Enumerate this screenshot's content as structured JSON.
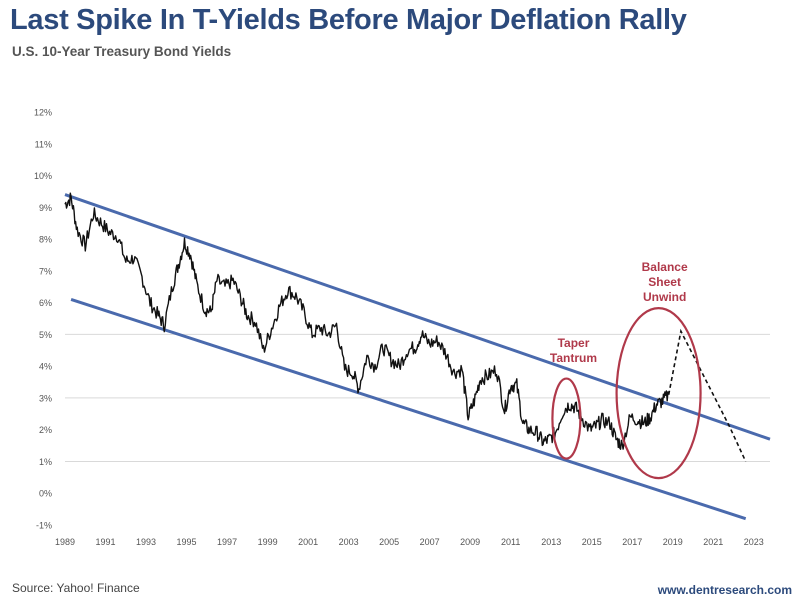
{
  "header": {
    "title": "Last Spike In T-Yields Before Major Deflation Rally",
    "subtitle": "U.S. 10-Year Treasury Bond Yields"
  },
  "footer": {
    "source": "Source: Yahoo! Finance",
    "website": "www.dentresearch.com"
  },
  "colors": {
    "title": "#2c4a7c",
    "channel": "#4a6aad",
    "series": "#111111",
    "annotation": "#b0394a",
    "grid": "#d9d9d9"
  },
  "chart_data": {
    "type": "line",
    "title": "Last Spike In T-Yields Before Major Deflation Rally",
    "subtitle": "U.S. 10-Year Treasury Bond Yields",
    "xlabel": "",
    "ylabel": "",
    "xlim": [
      1989,
      2023.8
    ],
    "ylim": [
      -1,
      12
    ],
    "y_ticks": [
      -1,
      0,
      1,
      2,
      3,
      4,
      5,
      6,
      7,
      8,
      9,
      10,
      11,
      12
    ],
    "y_tick_labels": [
      "-1%",
      "0%",
      "1%",
      "2%",
      "3%",
      "4%",
      "5%",
      "6%",
      "7%",
      "8%",
      "9%",
      "10%",
      "11%",
      "12%"
    ],
    "x_tick_labels": [
      "1989",
      "1991",
      "1993",
      "1995",
      "1997",
      "1999",
      "2001",
      "2003",
      "2005",
      "2007",
      "2009",
      "2011",
      "2013",
      "2015",
      "2017",
      "2019",
      "2021",
      "2023"
    ],
    "grid": "horizontal",
    "series": [
      {
        "name": "10-Year Treasury Yield",
        "style": "solid",
        "x": [
          1989.0,
          1989.3,
          1989.6,
          1990.0,
          1990.4,
          1990.8,
          1991.2,
          1991.6,
          1992.0,
          1992.4,
          1992.8,
          1993.2,
          1993.6,
          1993.9,
          1994.3,
          1994.6,
          1994.9,
          1995.2,
          1995.5,
          1995.9,
          1996.2,
          1996.5,
          1996.9,
          1997.3,
          1997.7,
          1998.0,
          1998.4,
          1998.8,
          1999.2,
          1999.6,
          2000.0,
          2000.4,
          2000.8,
          2001.2,
          2001.6,
          2002.0,
          2002.4,
          2002.8,
          2003.2,
          2003.5,
          2003.9,
          2004.3,
          2004.7,
          2005.1,
          2005.5,
          2005.9,
          2006.3,
          2006.6,
          2007.0,
          2007.4,
          2007.8,
          2008.2,
          2008.6,
          2008.9,
          2009.2,
          2009.5,
          2009.9,
          2010.3,
          2010.7,
          2011.0,
          2011.3,
          2011.6,
          2011.9,
          2012.3,
          2012.6,
          2012.9,
          2013.2,
          2013.6,
          2013.9,
          2014.2,
          2014.5,
          2014.9,
          2015.2,
          2015.5,
          2015.9,
          2016.2,
          2016.5,
          2016.9,
          2017.3,
          2017.6,
          2017.9,
          2018.2,
          2018.5,
          2018.8
        ],
        "values": [
          9.1,
          9.3,
          8.3,
          7.8,
          8.8,
          8.5,
          8.2,
          8.1,
          7.3,
          7.4,
          6.8,
          6.0,
          5.6,
          5.3,
          6.5,
          7.2,
          7.9,
          7.5,
          6.6,
          5.8,
          5.7,
          6.7,
          6.5,
          6.7,
          6.1,
          5.6,
          5.4,
          4.5,
          5.2,
          5.9,
          6.4,
          6.2,
          5.7,
          5.0,
          5.2,
          5.0,
          5.3,
          3.9,
          3.8,
          3.3,
          4.3,
          4.0,
          4.6,
          4.2,
          4.0,
          4.5,
          4.6,
          5.0,
          4.7,
          4.8,
          4.4,
          3.8,
          3.9,
          2.4,
          2.9,
          3.6,
          3.7,
          3.9,
          2.6,
          3.4,
          3.4,
          2.2,
          2.0,
          1.9,
          1.6,
          1.7,
          1.9,
          2.6,
          2.8,
          2.7,
          2.4,
          2.0,
          2.1,
          2.3,
          2.2,
          1.7,
          1.5,
          2.4,
          2.3,
          2.2,
          2.4,
          2.8,
          2.9,
          3.1
        ]
      },
      {
        "name": "Projection",
        "style": "dashed",
        "x": [
          2018.8,
          2019.4,
          2020.6,
          2021.8,
          2022.6
        ],
        "values": [
          3.1,
          5.1,
          3.6,
          2.1,
          1.0
        ]
      }
    ],
    "channel_lines": [
      {
        "name": "Upper channel",
        "x": [
          1989,
          2023.8
        ],
        "values": [
          9.4,
          1.7
        ]
      },
      {
        "name": "Lower channel",
        "x": [
          1989.3,
          2022.6
        ],
        "values": [
          6.1,
          -0.8
        ]
      }
    ],
    "annotations": [
      {
        "label_lines": [
          "Taper",
          "Tantrum"
        ],
        "x": 2014.1,
        "y": 4.6
      },
      {
        "label_lines": [
          "Balance",
          "Sheet",
          "Unwind"
        ],
        "x": 2018.6,
        "y": 7.0
      }
    ]
  }
}
